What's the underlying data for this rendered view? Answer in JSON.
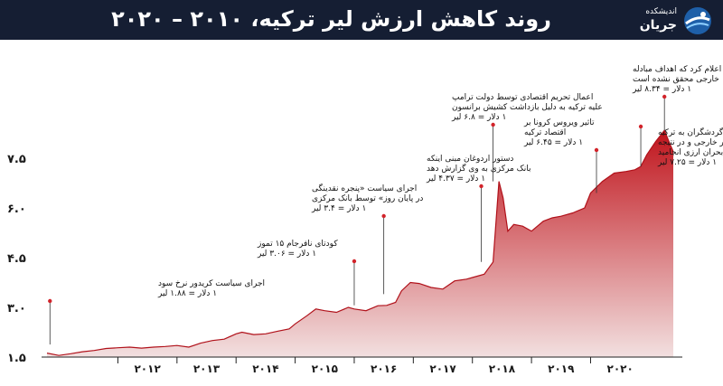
{
  "header": {
    "title": "روند کاهش ارزش لیر ترکیه، ۲۰۱۰ – ۲۰۲۰",
    "brand_small": "اندیشکده",
    "brand_name": "جریان",
    "logo_icon": "globe-logo-icon"
  },
  "colors": {
    "header_bg": "#151e33",
    "area_top": "#c0141c",
    "area_bottom": "#f2e0e0",
    "line": "#b0111a",
    "marker": "#d2232a"
  },
  "chart_data": {
    "type": "area",
    "title": "روند کاهش ارزش لیر ترکیه، ۲۰۱۰ – ۲۰۲۰",
    "xlabel": "",
    "ylabel": "",
    "ylim": [
      1.5,
      9.0
    ],
    "yticks": [
      1.5,
      3.0,
      4.5,
      6.0,
      7.5
    ],
    "ytick_labels": [
      "۱.۵",
      "۳.۰",
      "۴.۵",
      "۶.۰",
      "۷.۵"
    ],
    "xlim": [
      2010.8,
      2021.4
    ],
    "xticks": [
      2012,
      2013,
      2014,
      2015,
      2016,
      2017,
      2018,
      2019,
      2020
    ],
    "xtick_labels": [
      "۲۰۱۲",
      "۲۰۱۳",
      "۲۰۱۴",
      "۲۰۱۵",
      "۲۰۱۶",
      "۲۰۱۷",
      "۲۰۱۸",
      "۲۰۱۹",
      "۲۰۲۰"
    ],
    "grid": false,
    "series": [
      {
        "x": [
          2010.8,
          2011.0,
          2011.2,
          2011.4,
          2011.6,
          2011.8,
          2012.0,
          2012.2,
          2012.4,
          2012.6,
          2012.8,
          2013.0,
          2013.2,
          2013.4,
          2013.6,
          2013.8,
          2014.0,
          2014.1,
          2014.3,
          2014.5,
          2014.7,
          2014.9,
          2015.0,
          2015.2,
          2015.35,
          2015.5,
          2015.7,
          2015.9,
          2016.0,
          2016.2,
          2016.4,
          2016.55,
          2016.7,
          2016.8,
          2016.95,
          2017.1,
          2017.3,
          2017.5,
          2017.7,
          2017.9,
          2018.0,
          2018.2,
          2018.35,
          2018.45,
          2018.52,
          2018.6,
          2018.7,
          2018.85,
          2019.0,
          2019.2,
          2019.35,
          2019.5,
          2019.7,
          2019.9,
          2020.0,
          2020.2,
          2020.4,
          2020.6,
          2020.75,
          2020.85,
          2020.95,
          2021.1,
          2021.25,
          2021.35,
          2021.4
        ],
        "y": [
          1.62,
          1.55,
          1.6,
          1.66,
          1.7,
          1.76,
          1.78,
          1.8,
          1.77,
          1.8,
          1.82,
          1.85,
          1.8,
          1.92,
          2.0,
          2.04,
          2.2,
          2.25,
          2.18,
          2.2,
          2.28,
          2.35,
          2.5,
          2.75,
          2.95,
          2.9,
          2.85,
          3.0,
          2.95,
          2.9,
          3.05,
          3.06,
          3.15,
          3.5,
          3.75,
          3.72,
          3.6,
          3.55,
          3.8,
          3.85,
          3.9,
          4.0,
          4.37,
          6.8,
          6.3,
          5.3,
          5.5,
          5.45,
          5.3,
          5.6,
          5.7,
          5.75,
          5.85,
          6.0,
          6.45,
          6.8,
          7.05,
          7.1,
          7.15,
          7.25,
          7.6,
          8.0,
          8.34,
          7.9,
          7.7
        ]
      }
    ],
    "annotations": [
      {
        "x": 2010.85,
        "y": 1.88,
        "lines": [
          "اجرای سیاست کریدور نرخ سود",
          "۱ دلار = ۱.۸۸ لیر"
        ]
      },
      {
        "x": 2016.0,
        "y": 3.06,
        "lines": [
          "کودتای نافرجام ۱۵ تموز",
          "۱ دلار = ۳.۰۶ لیر"
        ]
      },
      {
        "x": 2016.5,
        "y": 3.4,
        "lines": [
          "اجرای سیاست «پنجره نقدینگی",
          "در پایان روز» توسط بانک مرکزی",
          "۱ دلار = ۳.۴ لیر"
        ]
      },
      {
        "x": 2018.15,
        "y": 4.37,
        "lines": [
          "دستور اردوغان مبنی اینکه",
          "بانک مرکزی به وی گزارش دهد",
          "۱ دلار = ۴.۳۷ لیر"
        ]
      },
      {
        "x": 2018.35,
        "y": 6.8,
        "lines": [
          "اعمال تحریم اقتصادی توسط دولت ترامپ",
          "علیه ترکیه به دلیل بازداشت کشیش برانسون",
          "۱ دلار = ۶.۸ لیر"
        ]
      },
      {
        "x": 2020.1,
        "y": 6.45,
        "lines": [
          "تاثیر ویروس کرونا بر",
          "اقتصاد ترکیه",
          "۱ دلار = ۶.۴۵ لیر"
        ]
      },
      {
        "x": 2020.85,
        "y": 7.25,
        "lines": [
          "کاهش ورود گردشگران به ترکیه",
          "به کاهش ذخایر خارجی و در نتیجه",
          "بحران ارزی انجامید",
          "۱ دلار = ۷.۲۵ لیر"
        ]
      },
      {
        "x": 2021.25,
        "y": 8.34,
        "lines": [
          "مورات یوسال اعلام کرد که اهداف مبادله",
          "خارجی محقق نشده است",
          "۱ دلار = ۸.۳۴ لیر"
        ]
      }
    ]
  }
}
